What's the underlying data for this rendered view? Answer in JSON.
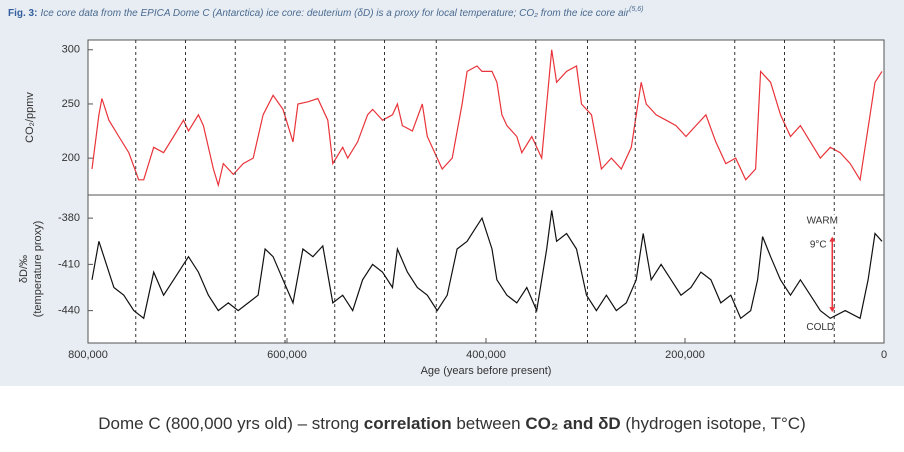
{
  "fig_label": "Fig. 3:",
  "title": "Ice core data from the EPICA Dome C (Antarctica) ice core: deuterium (δD) is a proxy for local temperature; CO₂ from the ice core air",
  "title_ref": "(5,6)",
  "caption": {
    "parts": [
      "Dome C (800,000 yrs old) – strong ",
      "correlation",
      " between ",
      "CO₂ and δD",
      " (hydrogen isotope, T°C)"
    ],
    "bold": [
      false,
      true,
      false,
      true,
      false
    ]
  },
  "chart_data": [
    {
      "type": "line",
      "ylabel": "CO₂/ppmv",
      "color": "#e8343a",
      "xlim": [
        800000,
        0
      ],
      "ylim": [
        166,
        309
      ],
      "yticks": [
        300,
        250,
        200
      ],
      "x": [
        796000,
        789000,
        786000,
        779000,
        769000,
        759000,
        749000,
        744000,
        734000,
        724000,
        714000,
        704000,
        699000,
        689000,
        684000,
        674000,
        669000,
        664000,
        654000,
        644000,
        634000,
        624000,
        614000,
        604000,
        594000,
        589000,
        579000,
        569000,
        559000,
        554000,
        544000,
        539000,
        529000,
        519000,
        514000,
        504000,
        494000,
        489000,
        484000,
        474000,
        464000,
        459000,
        449000,
        444000,
        434000,
        424000,
        419000,
        409000,
        404000,
        394000,
        389000,
        384000,
        379000,
        369000,
        364000,
        354000,
        344000,
        339000,
        334000,
        329000,
        319000,
        309000,
        304000,
        294000,
        284000,
        274000,
        264000,
        254000,
        244000,
        239000,
        229000,
        219000,
        209000,
        199000,
        189000,
        179000,
        169000,
        159000,
        149000,
        139000,
        129000,
        124000,
        114000,
        104000,
        94000,
        84000,
        74000,
        64000,
        54000,
        44000,
        34000,
        24000,
        14000,
        9000,
        2000
      ],
      "values": [
        190,
        240,
        255,
        235,
        220,
        205,
        180,
        180,
        210,
        205,
        220,
        235,
        225,
        240,
        230,
        190,
        175,
        195,
        185,
        195,
        200,
        240,
        258,
        245,
        215,
        250,
        252,
        255,
        235,
        195,
        210,
        200,
        215,
        240,
        245,
        235,
        240,
        250,
        230,
        225,
        250,
        220,
        200,
        190,
        200,
        250,
        280,
        285,
        280,
        280,
        270,
        240,
        230,
        220,
        205,
        220,
        200,
        250,
        300,
        270,
        280,
        285,
        250,
        240,
        190,
        200,
        190,
        210,
        270,
        250,
        240,
        235,
        230,
        220,
        230,
        240,
        215,
        195,
        200,
        180,
        190,
        280,
        270,
        240,
        220,
        230,
        215,
        200,
        210,
        205,
        195,
        180,
        240,
        270,
        280
      ]
    },
    {
      "type": "line",
      "ylabel": [
        "δD/‰",
        "(temperature proxy)"
      ],
      "xlabel": "Age (years before present)",
      "color": "#111111",
      "xlim": [
        800000,
        0
      ],
      "ylim": [
        -461,
        -365
      ],
      "yticks": [
        -380,
        -410,
        -440
      ],
      "xticks": [
        {
          "value": 800000,
          "label": "800,000"
        },
        {
          "value": 600000,
          "label": "600,000"
        },
        {
          "value": 400000,
          "label": "400,000"
        },
        {
          "value": 200000,
          "label": "200,000"
        },
        0
      ],
      "vlines": [
        752000,
        702000,
        652000,
        602000,
        552000,
        502000,
        450000,
        350000,
        298000,
        250000,
        150000,
        100000,
        50000
      ],
      "annotation": {
        "warm": "WARM",
        "delta": "9°C",
        "cold": "COLD",
        "color": "#e8343a",
        "x": 52000,
        "y": [
          -441,
          -392
        ]
      },
      "x": [
        796000,
        789000,
        784000,
        774000,
        764000,
        754000,
        744000,
        734000,
        724000,
        714000,
        704000,
        699000,
        689000,
        679000,
        669000,
        659000,
        649000,
        639000,
        629000,
        622000,
        614000,
        604000,
        594000,
        584000,
        574000,
        564000,
        554000,
        544000,
        534000,
        524000,
        514000,
        504000,
        494000,
        489000,
        479000,
        469000,
        459000,
        449000,
        439000,
        429000,
        419000,
        409000,
        404000,
        394000,
        389000,
        379000,
        369000,
        359000,
        349000,
        339000,
        334000,
        329000,
        319000,
        309000,
        299000,
        289000,
        279000,
        269000,
        259000,
        249000,
        242000,
        234000,
        224000,
        214000,
        204000,
        194000,
        184000,
        174000,
        164000,
        154000,
        144000,
        134000,
        127000,
        122000,
        114000,
        104000,
        94000,
        84000,
        74000,
        64000,
        54000,
        39000,
        24000,
        16000,
        9000,
        2000
      ],
      "values": [
        -420,
        -395,
        -405,
        -425,
        -430,
        -440,
        -445,
        -415,
        -430,
        -420,
        -410,
        -405,
        -415,
        -430,
        -440,
        -435,
        -440,
        -435,
        -430,
        -400,
        -405,
        -420,
        -435,
        -400,
        -405,
        -398,
        -435,
        -430,
        -440,
        -420,
        -410,
        -415,
        -425,
        -400,
        -415,
        -425,
        -430,
        -440,
        -430,
        -400,
        -395,
        -385,
        -380,
        -400,
        -420,
        -430,
        -435,
        -425,
        -440,
        -400,
        -375,
        -395,
        -390,
        -400,
        -430,
        -440,
        -430,
        -440,
        -435,
        -420,
        -390,
        -420,
        -410,
        -420,
        -430,
        -425,
        -415,
        -420,
        -435,
        -430,
        -445,
        -440,
        -420,
        -392,
        -405,
        -420,
        -430,
        -420,
        -430,
        -440,
        -445,
        -440,
        -445,
        -420,
        -390,
        -395
      ]
    }
  ]
}
